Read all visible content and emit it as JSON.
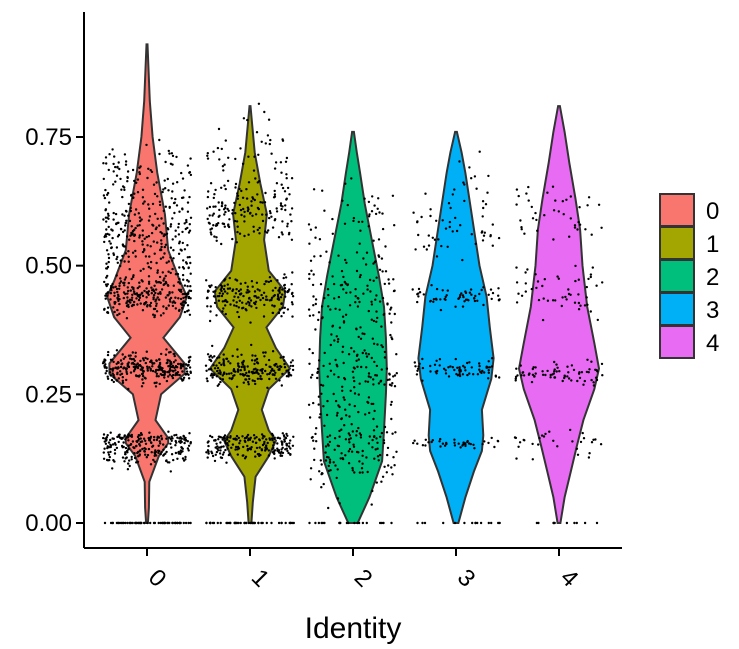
{
  "chart_data": {
    "type": "violin",
    "title": "",
    "xlabel": "Identity",
    "ylabel": "",
    "categories": [
      "0",
      "1",
      "2",
      "3",
      "4"
    ],
    "colors": [
      "#F8766D",
      "#A3A500",
      "#00BF7D",
      "#00B0F6",
      "#E76BF3"
    ],
    "ylim": [
      0,
      0.95
    ],
    "yticks": [
      0.0,
      0.25,
      0.5,
      0.75
    ],
    "ytick_labels": [
      "0.00",
      "0.25",
      "0.50",
      "0.75"
    ],
    "violins": [
      {
        "name": "0",
        "max": 0.93,
        "width_profile": [
          [
            0.0,
            0.02
          ],
          [
            0.03,
            0.04
          ],
          [
            0.08,
            0.05
          ],
          [
            0.13,
            0.25
          ],
          [
            0.155,
            0.45
          ],
          [
            0.165,
            0.45
          ],
          [
            0.2,
            0.18
          ],
          [
            0.25,
            0.3
          ],
          [
            0.29,
            0.8
          ],
          [
            0.31,
            0.8
          ],
          [
            0.36,
            0.35
          ],
          [
            0.4,
            0.7
          ],
          [
            0.44,
            0.85
          ],
          [
            0.47,
            0.7
          ],
          [
            0.53,
            0.45
          ],
          [
            0.6,
            0.38
          ],
          [
            0.68,
            0.22
          ],
          [
            0.75,
            0.12
          ],
          [
            0.82,
            0.06
          ],
          [
            0.93,
            0.01
          ]
        ]
      },
      {
        "name": "1",
        "max": 0.81,
        "width_profile": [
          [
            0.0,
            0.03
          ],
          [
            0.04,
            0.06
          ],
          [
            0.09,
            0.12
          ],
          [
            0.13,
            0.4
          ],
          [
            0.16,
            0.55
          ],
          [
            0.18,
            0.4
          ],
          [
            0.22,
            0.25
          ],
          [
            0.26,
            0.4
          ],
          [
            0.3,
            0.85
          ],
          [
            0.34,
            0.55
          ],
          [
            0.38,
            0.35
          ],
          [
            0.42,
            0.7
          ],
          [
            0.45,
            0.75
          ],
          [
            0.49,
            0.4
          ],
          [
            0.55,
            0.3
          ],
          [
            0.6,
            0.36
          ],
          [
            0.66,
            0.22
          ],
          [
            0.72,
            0.1
          ],
          [
            0.78,
            0.04
          ],
          [
            0.81,
            0.01
          ]
        ]
      },
      {
        "name": "2",
        "max": 0.76,
        "width_profile": [
          [
            0.0,
            0.1
          ],
          [
            0.05,
            0.35
          ],
          [
            0.12,
            0.62
          ],
          [
            0.18,
            0.66
          ],
          [
            0.25,
            0.7
          ],
          [
            0.3,
            0.72
          ],
          [
            0.36,
            0.7
          ],
          [
            0.42,
            0.66
          ],
          [
            0.48,
            0.55
          ],
          [
            0.55,
            0.4
          ],
          [
            0.62,
            0.25
          ],
          [
            0.68,
            0.15
          ],
          [
            0.72,
            0.08
          ],
          [
            0.76,
            0.02
          ]
        ]
      },
      {
        "name": "3",
        "max": 0.76,
        "width_profile": [
          [
            0.0,
            0.05
          ],
          [
            0.05,
            0.2
          ],
          [
            0.1,
            0.38
          ],
          [
            0.14,
            0.55
          ],
          [
            0.17,
            0.58
          ],
          [
            0.22,
            0.55
          ],
          [
            0.28,
            0.75
          ],
          [
            0.32,
            0.8
          ],
          [
            0.38,
            0.72
          ],
          [
            0.44,
            0.65
          ],
          [
            0.5,
            0.5
          ],
          [
            0.56,
            0.4
          ],
          [
            0.62,
            0.3
          ],
          [
            0.68,
            0.2
          ],
          [
            0.72,
            0.12
          ],
          [
            0.76,
            0.02
          ]
        ]
      },
      {
        "name": "4",
        "max": 0.81,
        "width_profile": [
          [
            0.0,
            0.03
          ],
          [
            0.05,
            0.12
          ],
          [
            0.1,
            0.25
          ],
          [
            0.15,
            0.38
          ],
          [
            0.2,
            0.52
          ],
          [
            0.26,
            0.75
          ],
          [
            0.3,
            0.85
          ],
          [
            0.35,
            0.75
          ],
          [
            0.42,
            0.6
          ],
          [
            0.5,
            0.5
          ],
          [
            0.57,
            0.45
          ],
          [
            0.63,
            0.35
          ],
          [
            0.7,
            0.22
          ],
          [
            0.76,
            0.12
          ],
          [
            0.81,
            0.02
          ]
        ]
      }
    ],
    "point_bands": [
      [
        [
          0.0,
          0.02,
          60
        ],
        [
          0.14,
          0.03,
          160
        ],
        [
          0.165,
          0.01,
          80
        ],
        [
          0.3,
          0.03,
          260
        ],
        [
          0.44,
          0.04,
          240
        ],
        [
          0.55,
          0.08,
          220
        ],
        [
          0.65,
          0.1,
          120
        ]
      ],
      [
        [
          0.0,
          0.02,
          50
        ],
        [
          0.145,
          0.02,
          140
        ],
        [
          0.165,
          0.01,
          60
        ],
        [
          0.3,
          0.03,
          200
        ],
        [
          0.44,
          0.04,
          180
        ],
        [
          0.6,
          0.06,
          140
        ],
        [
          0.7,
          0.1,
          60
        ]
      ],
      [
        [
          0.0,
          0.01,
          20
        ],
        [
          0.15,
          0.1,
          150
        ],
        [
          0.3,
          0.08,
          120
        ],
        [
          0.45,
          0.1,
          120
        ],
        [
          0.6,
          0.08,
          40
        ]
      ],
      [
        [
          0.0,
          0.01,
          15
        ],
        [
          0.155,
          0.01,
          40
        ],
        [
          0.3,
          0.02,
          70
        ],
        [
          0.44,
          0.02,
          60
        ],
        [
          0.56,
          0.05,
          40
        ],
        [
          0.65,
          0.08,
          20
        ]
      ],
      [
        [
          0.0,
          0.01,
          10
        ],
        [
          0.155,
          0.03,
          30
        ],
        [
          0.29,
          0.02,
          70
        ],
        [
          0.45,
          0.05,
          50
        ],
        [
          0.6,
          0.06,
          40
        ]
      ]
    ],
    "legend_position": "right"
  }
}
